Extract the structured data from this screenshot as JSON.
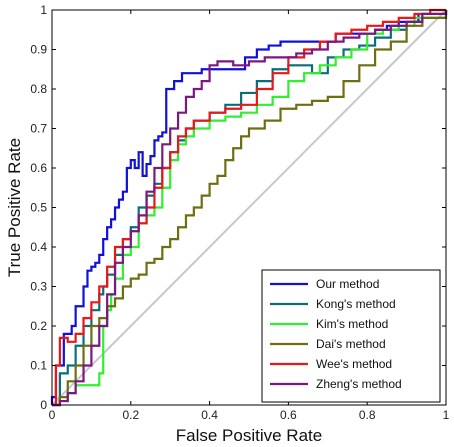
{
  "chart_data": {
    "type": "line",
    "title": "",
    "xlabel": "False Positive Rate",
    "ylabel": "True Positive Rate",
    "xlim": [
      0,
      1
    ],
    "ylim": [
      0,
      1
    ],
    "xticks": [
      "0",
      "0.2",
      "0.4",
      "0.6",
      "0.8",
      "1"
    ],
    "yticks": [
      "0",
      "0.1",
      "0.2",
      "0.3",
      "0.4",
      "0.5",
      "0.6",
      "0.7",
      "0.8",
      "0.9",
      "1"
    ],
    "grid": false,
    "legend_position": "bottom-right",
    "reference_line": {
      "x": [
        0,
        1
      ],
      "y": [
        0,
        1
      ],
      "color": "#c8c8c8"
    },
    "series": [
      {
        "name": "Our method",
        "color": "#1010d8",
        "x": [
          0,
          0,
          0.01,
          0.01,
          0.03,
          0.03,
          0.05,
          0.06,
          0.08,
          0.09,
          0.1,
          0.11,
          0.12,
          0.13,
          0.14,
          0.15,
          0.16,
          0.17,
          0.18,
          0.19,
          0.19,
          0.2,
          0.21,
          0.22,
          0.23,
          0.24,
          0.25,
          0.26,
          0.27,
          0.28,
          0.29,
          0.31,
          0.33,
          0.33,
          0.37,
          0.38,
          0.45,
          0.49,
          0.52,
          0.55,
          0.58,
          0.59,
          0.61,
          0.7,
          0.72,
          0.8,
          0.82,
          0.85,
          0.88,
          0.9,
          0.93,
          0.97,
          1.0
        ],
        "y": [
          0,
          0.02,
          0.05,
          0.1,
          0.12,
          0.18,
          0.2,
          0.25,
          0.3,
          0.34,
          0.35,
          0.36,
          0.38,
          0.42,
          0.45,
          0.47,
          0.5,
          0.52,
          0.54,
          0.58,
          0.6,
          0.62,
          0.6,
          0.64,
          0.58,
          0.61,
          0.63,
          0.67,
          0.68,
          0.69,
          0.8,
          0.82,
          0.83,
          0.84,
          0.84,
          0.85,
          0.85,
          0.88,
          0.9,
          0.91,
          0.92,
          0.92,
          0.92,
          0.92,
          0.94,
          0.94,
          0.95,
          0.96,
          0.97,
          0.97,
          0.99,
          0.99,
          1.0
        ]
      },
      {
        "name": "Kong's method",
        "color": "#0a6e78",
        "x": [
          0,
          0.02,
          0.02,
          0.04,
          0.06,
          0.08,
          0.1,
          0.12,
          0.13,
          0.14,
          0.16,
          0.18,
          0.2,
          0.22,
          0.24,
          0.26,
          0.28,
          0.3,
          0.32,
          0.34,
          0.36,
          0.4,
          0.44,
          0.48,
          0.52,
          0.56,
          0.6,
          0.63,
          0.66,
          0.7,
          0.74,
          0.78,
          0.82,
          0.86,
          0.9,
          0.94,
          1.0
        ],
        "y": [
          0,
          0.05,
          0.08,
          0.1,
          0.15,
          0.2,
          0.24,
          0.28,
          0.3,
          0.33,
          0.38,
          0.42,
          0.45,
          0.5,
          0.53,
          0.56,
          0.6,
          0.64,
          0.67,
          0.7,
          0.72,
          0.74,
          0.76,
          0.79,
          0.82,
          0.85,
          0.86,
          0.86,
          0.84,
          0.88,
          0.9,
          0.91,
          0.93,
          0.95,
          0.97,
          0.99,
          1.0
        ]
      },
      {
        "name": "Kim's method",
        "color": "#30ee30",
        "x": [
          0,
          0.02,
          0.04,
          0.06,
          0.08,
          0.1,
          0.12,
          0.13,
          0.14,
          0.15,
          0.16,
          0.18,
          0.2,
          0.22,
          0.24,
          0.26,
          0.28,
          0.3,
          0.32,
          0.34,
          0.36,
          0.4,
          0.44,
          0.48,
          0.52,
          0.56,
          0.6,
          0.64,
          0.68,
          0.72,
          0.76,
          0.8,
          0.84,
          0.88,
          0.92,
          0.96,
          1.0
        ],
        "y": [
          0,
          0.01,
          0.03,
          0.05,
          0.05,
          0.05,
          0.08,
          0.2,
          0.24,
          0.28,
          0.32,
          0.38,
          0.4,
          0.46,
          0.48,
          0.5,
          0.55,
          0.62,
          0.66,
          0.68,
          0.7,
          0.72,
          0.73,
          0.74,
          0.76,
          0.78,
          0.82,
          0.84,
          0.86,
          0.88,
          0.9,
          0.94,
          0.95,
          0.96,
          0.98,
          0.98,
          1.0
        ]
      },
      {
        "name": "Dai's method",
        "color": "#6e6e10",
        "x": [
          0,
          0.02,
          0.04,
          0.06,
          0.08,
          0.1,
          0.12,
          0.14,
          0.16,
          0.18,
          0.2,
          0.22,
          0.24,
          0.26,
          0.28,
          0.3,
          0.32,
          0.34,
          0.36,
          0.38,
          0.4,
          0.42,
          0.44,
          0.46,
          0.48,
          0.5,
          0.54,
          0.58,
          0.62,
          0.66,
          0.7,
          0.74,
          0.78,
          0.82,
          0.86,
          0.9,
          0.94,
          1.0
        ],
        "y": [
          0,
          0.02,
          0.06,
          0.1,
          0.15,
          0.2,
          0.22,
          0.25,
          0.27,
          0.3,
          0.32,
          0.33,
          0.36,
          0.37,
          0.4,
          0.42,
          0.45,
          0.48,
          0.5,
          0.53,
          0.56,
          0.58,
          0.62,
          0.65,
          0.68,
          0.7,
          0.72,
          0.75,
          0.76,
          0.77,
          0.78,
          0.82,
          0.86,
          0.9,
          0.92,
          0.96,
          0.98,
          1.0
        ]
      },
      {
        "name": "Wee's method",
        "color": "#e81818",
        "x": [
          0,
          0.01,
          0.02,
          0.03,
          0.04,
          0.06,
          0.08,
          0.1,
          0.12,
          0.14,
          0.16,
          0.18,
          0.2,
          0.22,
          0.24,
          0.26,
          0.28,
          0.3,
          0.32,
          0.34,
          0.36,
          0.4,
          0.44,
          0.48,
          0.52,
          0.56,
          0.6,
          0.64,
          0.68,
          0.72,
          0.76,
          0.8,
          0.84,
          0.88,
          0.92,
          0.96,
          1.0
        ],
        "y": [
          0,
          0.1,
          0.17,
          0.17,
          0.16,
          0.18,
          0.22,
          0.26,
          0.3,
          0.35,
          0.4,
          0.42,
          0.44,
          0.46,
          0.5,
          0.55,
          0.6,
          0.64,
          0.68,
          0.7,
          0.72,
          0.74,
          0.75,
          0.76,
          0.8,
          0.84,
          0.88,
          0.9,
          0.92,
          0.94,
          0.95,
          0.96,
          0.97,
          0.98,
          0.99,
          1.0,
          1.0
        ]
      },
      {
        "name": "Zheng's method",
        "color": "#7a1880",
        "x": [
          0,
          0.02,
          0.04,
          0.06,
          0.08,
          0.1,
          0.12,
          0.14,
          0.16,
          0.18,
          0.2,
          0.22,
          0.24,
          0.26,
          0.28,
          0.3,
          0.32,
          0.34,
          0.36,
          0.38,
          0.4,
          0.42,
          0.44,
          0.46,
          0.48,
          0.5,
          0.54,
          0.58,
          0.62,
          0.66,
          0.7,
          0.74,
          0.78,
          0.82,
          0.86,
          0.9,
          0.94,
          1.0
        ],
        "y": [
          0,
          0.01,
          0.03,
          0.06,
          0.1,
          0.15,
          0.2,
          0.28,
          0.36,
          0.4,
          0.44,
          0.48,
          0.54,
          0.6,
          0.66,
          0.7,
          0.74,
          0.78,
          0.8,
          0.82,
          0.86,
          0.87,
          0.87,
          0.86,
          0.86,
          0.87,
          0.88,
          0.88,
          0.89,
          0.9,
          0.92,
          0.93,
          0.94,
          0.95,
          0.96,
          0.97,
          0.99,
          1.0
        ]
      }
    ]
  }
}
